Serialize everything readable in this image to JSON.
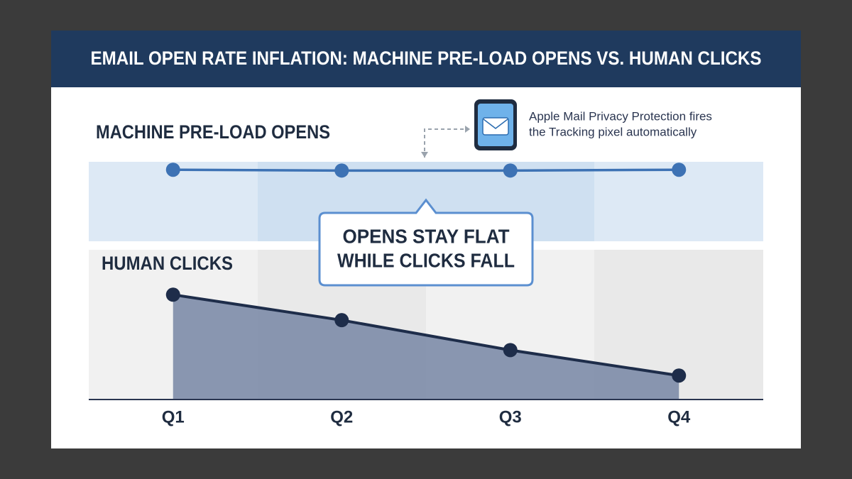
{
  "chart_data": {
    "type": "line",
    "title": "EMAIL OPEN RATE INFLATION: MACHINE PRE-LOAD OPENS VS. HUMAN CLICKS",
    "categories": [
      "Q1",
      "Q2",
      "Q3",
      "Q4"
    ],
    "series": [
      {
        "name": "MACHINE PRE-LOAD OPENS",
        "color": "#3d72b4",
        "values": [
          90,
          89,
          89,
          90
        ],
        "ylim": [
          0,
          100
        ]
      },
      {
        "name": "HUMAN CLICKS",
        "color": "#1e2d4a",
        "area_color": "#7d8ca8",
        "values": [
          70,
          53,
          33,
          16
        ],
        "ylim": [
          0,
          100
        ]
      }
    ],
    "callout": [
      "OPENS STAY FLAT",
      "WHILE CLICKS FALL"
    ],
    "annotation": [
      "Apple Mail Privacy Protection fires",
      "the Tracking pixel automatically"
    ]
  }
}
